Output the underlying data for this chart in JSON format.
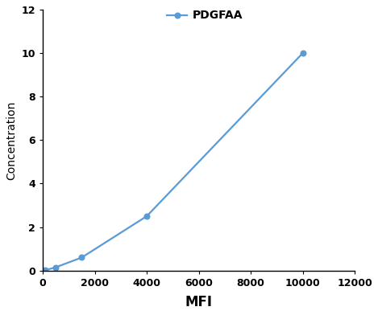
{
  "x": [
    100,
    500,
    1500,
    4000,
    10000
  ],
  "y": [
    0.02,
    0.15,
    0.6,
    2.5,
    10.0
  ],
  "line_color": "#5b9bd5",
  "marker_style": "o",
  "marker_size": 5,
  "marker_face_color": "#5b9bd5",
  "line_width": 1.6,
  "xlabel": "MFI",
  "ylabel": "Concentration",
  "xlim": [
    0,
    12000
  ],
  "ylim": [
    0,
    12
  ],
  "xticks": [
    0,
    2000,
    4000,
    6000,
    8000,
    10000,
    12000
  ],
  "yticks": [
    0,
    2,
    4,
    6,
    8,
    10,
    12
  ],
  "legend_label": "PDGFAA",
  "xlabel_fontsize": 12,
  "ylabel_fontsize": 10,
  "tick_fontsize": 9,
  "legend_fontsize": 10,
  "background_color": "#ffffff"
}
